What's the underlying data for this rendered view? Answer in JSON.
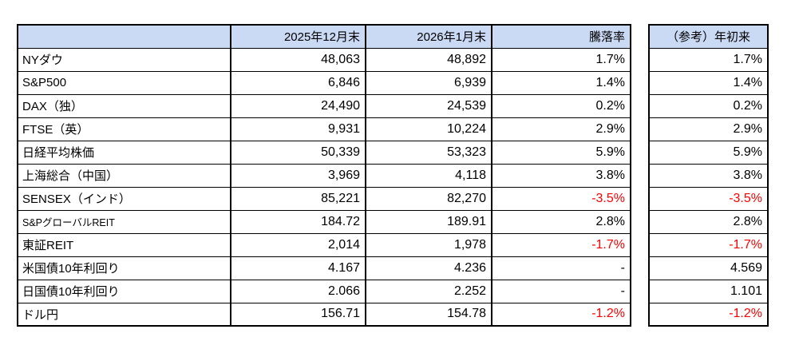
{
  "colors": {
    "header_bg": "#cad9f4",
    "negative_text": "#ff0000",
    "border": "#000000",
    "background": "#ffffff"
  },
  "main_table": {
    "columns": [
      "2025年12月末",
      "2026年1月末",
      "騰落率"
    ],
    "rows": [
      {
        "label": "NYダウ",
        "dec": "48,063",
        "jan": "48,892",
        "change": "1.7%",
        "neg": false
      },
      {
        "label": "S&P500",
        "dec": "6,846",
        "jan": "6,939",
        "change": "1.4%",
        "neg": false
      },
      {
        "label": "DAX（独）",
        "dec": "24,490",
        "jan": "24,539",
        "change": "0.2%",
        "neg": false
      },
      {
        "label": "FTSE（英）",
        "dec": "9,931",
        "jan": "10,224",
        "change": "2.9%",
        "neg": false
      },
      {
        "label": "日経平均株価",
        "dec": "50,339",
        "jan": "53,323",
        "change": "5.9%",
        "neg": false
      },
      {
        "label": "上海総合（中国）",
        "dec": "3,969",
        "jan": "4,118",
        "change": "3.8%",
        "neg": false
      },
      {
        "label": "SENSEX（インド）",
        "dec": "85,221",
        "jan": "82,270",
        "change": "-3.5%",
        "neg": true
      },
      {
        "label": "S&PグローバルREIT",
        "dec": "184.72",
        "jan": "189.91",
        "change": "2.8%",
        "neg": false,
        "small": true
      },
      {
        "label": "東証REIT",
        "dec": "2,014",
        "jan": "1,978",
        "change": "-1.7%",
        "neg": true
      },
      {
        "label": "米国債10年利回り",
        "dec": "4.167",
        "jan": "4.236",
        "change": "-",
        "neg": false
      },
      {
        "label": "日国債10年利回り",
        "dec": "2.066",
        "jan": "2.252",
        "change": "-",
        "neg": false
      },
      {
        "label": "ドル円",
        "dec": "156.71",
        "jan": "154.78",
        "change": "-1.2%",
        "neg": true
      }
    ]
  },
  "ref_table": {
    "header": "（参考）年初来",
    "rows": [
      {
        "value": "1.7%",
        "neg": false
      },
      {
        "value": "1.4%",
        "neg": false
      },
      {
        "value": "0.2%",
        "neg": false
      },
      {
        "value": "2.9%",
        "neg": false
      },
      {
        "value": "5.9%",
        "neg": false
      },
      {
        "value": "3.8%",
        "neg": false
      },
      {
        "value": "-3.5%",
        "neg": true
      },
      {
        "value": "2.8%",
        "neg": false
      },
      {
        "value": "-1.7%",
        "neg": true
      },
      {
        "value": "4.569",
        "neg": false
      },
      {
        "value": "1.101",
        "neg": false
      },
      {
        "value": "-1.2%",
        "neg": true
      }
    ]
  }
}
